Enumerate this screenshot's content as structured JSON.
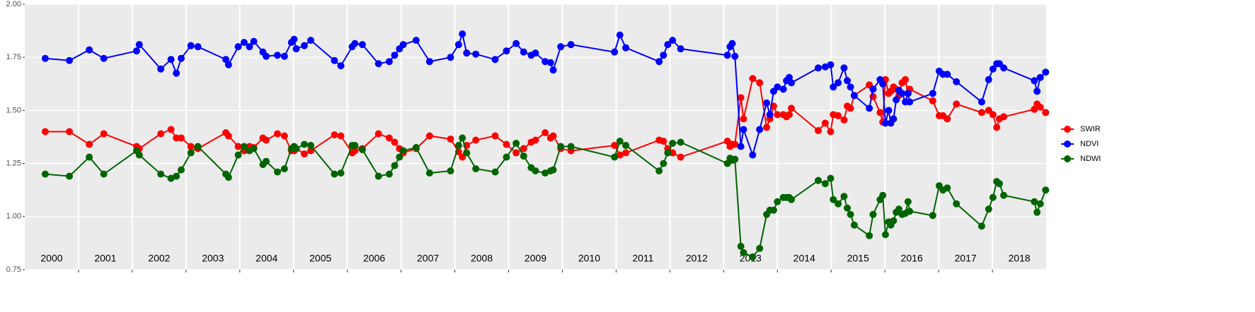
{
  "chart_data": {
    "type": "line",
    "x": [
      2000.38,
      2000.83,
      2001.2,
      2001.47,
      2002.08,
      2002.13,
      2002.53,
      2002.72,
      2002.82,
      2002.91,
      2003.09,
      2003.22,
      2003.74,
      2003.79,
      2003.97,
      2004.08,
      2004.18,
      2004.26,
      2004.43,
      2004.49,
      2004.7,
      2004.83,
      2004.96,
      2005.01,
      2005.05,
      2005.2,
      2005.32,
      2005.76,
      2005.88,
      2006.09,
      2006.14,
      2006.28,
      2006.58,
      2006.78,
      2006.88,
      2006.97,
      2007.04,
      2007.28,
      2007.53,
      2007.92,
      2008.07,
      2008.14,
      2008.22,
      2008.39,
      2008.75,
      2008.96,
      2009.14,
      2009.28,
      2009.42,
      2009.5,
      2009.68,
      2009.78,
      2009.83,
      2009.97,
      2010.16,
      2010.97,
      2011.07,
      2011.18,
      2011.8,
      2011.88,
      2011.96,
      2012.05,
      2012.2,
      2013.07,
      2013.12,
      2013.16,
      2013.21,
      2013.32,
      2013.37,
      2013.54,
      2013.67,
      2013.8,
      2013.86,
      2013.93,
      2014.0,
      2014.11,
      2014.17,
      2014.22,
      2014.26,
      2014.76,
      2014.89,
      2014.99,
      2015.04,
      2015.13,
      2015.24,
      2015.3,
      2015.36,
      2015.43,
      2015.71,
      2015.78,
      2015.91,
      2015.96,
      2016.01,
      2016.07,
      2016.11,
      2016.16,
      2016.21,
      2016.26,
      2016.32,
      2016.38,
      2016.43,
      2016.46,
      2016.89,
      2017.01,
      2017.08,
      2017.16,
      2017.33,
      2017.8,
      2017.93,
      2018.01,
      2018.08,
      2018.13,
      2018.21,
      2018.78,
      2018.83,
      2018.89,
      2018.99
    ],
    "series": [
      {
        "name": "SWIR",
        "color": "#ff0000",
        "values": [
          1.4,
          1.4,
          1.34,
          1.39,
          1.33,
          1.32,
          1.39,
          1.41,
          1.37,
          1.37,
          1.33,
          1.32,
          1.395,
          1.38,
          1.33,
          1.31,
          1.33,
          1.325,
          1.37,
          1.36,
          1.39,
          1.38,
          1.31,
          1.31,
          1.32,
          1.295,
          1.31,
          1.385,
          1.38,
          1.3,
          1.31,
          1.32,
          1.39,
          1.37,
          1.35,
          1.32,
          1.3,
          1.32,
          1.38,
          1.365,
          1.305,
          1.28,
          1.335,
          1.36,
          1.38,
          1.34,
          1.3,
          1.32,
          1.35,
          1.36,
          1.395,
          1.37,
          1.38,
          1.32,
          1.31,
          1.335,
          1.29,
          1.3,
          1.36,
          1.355,
          1.32,
          1.3,
          1.28,
          1.355,
          1.33,
          1.34,
          1.34,
          1.56,
          1.46,
          1.65,
          1.63,
          1.42,
          1.46,
          1.52,
          1.48,
          1.48,
          1.47,
          1.48,
          1.51,
          1.405,
          1.44,
          1.4,
          1.48,
          1.475,
          1.455,
          1.52,
          1.51,
          1.57,
          1.62,
          1.565,
          1.49,
          1.445,
          1.645,
          1.58,
          1.59,
          1.61,
          1.6,
          1.57,
          1.63,
          1.645,
          1.58,
          1.6,
          1.545,
          1.475,
          1.475,
          1.46,
          1.53,
          1.49,
          1.5,
          1.48,
          1.42,
          1.46,
          1.47,
          1.505,
          1.53,
          1.515,
          1.49
        ]
      },
      {
        "name": "NDVI",
        "color": "#0000ff",
        "values": [
          1.745,
          1.735,
          1.785,
          1.745,
          1.78,
          1.81,
          1.695,
          1.74,
          1.675,
          1.745,
          1.805,
          1.8,
          1.74,
          1.715,
          1.8,
          1.82,
          1.8,
          1.825,
          1.775,
          1.755,
          1.76,
          1.755,
          1.82,
          1.835,
          1.79,
          1.805,
          1.83,
          1.735,
          1.71,
          1.8,
          1.815,
          1.81,
          1.72,
          1.73,
          1.76,
          1.79,
          1.81,
          1.83,
          1.73,
          1.75,
          1.81,
          1.86,
          1.77,
          1.765,
          1.74,
          1.78,
          1.815,
          1.775,
          1.76,
          1.77,
          1.73,
          1.725,
          1.69,
          1.8,
          1.81,
          1.775,
          1.855,
          1.795,
          1.73,
          1.76,
          1.81,
          1.83,
          1.79,
          1.76,
          1.8,
          1.815,
          1.755,
          1.33,
          1.41,
          1.29,
          1.41,
          1.535,
          1.48,
          1.59,
          1.61,
          1.6,
          1.64,
          1.655,
          1.63,
          1.7,
          1.705,
          1.715,
          1.61,
          1.63,
          1.7,
          1.64,
          1.61,
          1.57,
          1.51,
          1.6,
          1.645,
          1.625,
          1.44,
          1.5,
          1.44,
          1.46,
          1.55,
          1.595,
          1.58,
          1.54,
          1.58,
          1.54,
          1.58,
          1.685,
          1.67,
          1.67,
          1.635,
          1.54,
          1.645,
          1.695,
          1.72,
          1.72,
          1.7,
          1.64,
          1.59,
          1.655,
          1.68
        ]
      },
      {
        "name": "NDWI",
        "color": "#006400",
        "values": [
          1.2,
          1.19,
          1.28,
          1.2,
          1.31,
          1.29,
          1.2,
          1.18,
          1.19,
          1.22,
          1.3,
          1.33,
          1.2,
          1.185,
          1.29,
          1.33,
          1.31,
          1.32,
          1.245,
          1.26,
          1.21,
          1.225,
          1.32,
          1.33,
          1.32,
          1.34,
          1.335,
          1.2,
          1.205,
          1.335,
          1.335,
          1.315,
          1.19,
          1.2,
          1.24,
          1.28,
          1.31,
          1.325,
          1.205,
          1.215,
          1.335,
          1.37,
          1.3,
          1.225,
          1.21,
          1.28,
          1.345,
          1.285,
          1.23,
          1.215,
          1.205,
          1.215,
          1.22,
          1.33,
          1.33,
          1.28,
          1.355,
          1.335,
          1.215,
          1.25,
          1.3,
          1.345,
          1.35,
          1.25,
          1.275,
          1.265,
          1.27,
          0.86,
          0.83,
          0.81,
          0.85,
          1.01,
          1.03,
          1.03,
          1.07,
          1.09,
          1.09,
          1.09,
          1.08,
          1.17,
          1.155,
          1.18,
          1.08,
          1.06,
          1.095,
          1.04,
          1.01,
          0.96,
          0.91,
          1.01,
          1.08,
          1.1,
          0.915,
          0.975,
          0.96,
          0.98,
          1.02,
          1.035,
          1.01,
          1.015,
          1.07,
          1.025,
          1.005,
          1.145,
          1.125,
          1.135,
          1.06,
          0.955,
          1.035,
          1.09,
          1.165,
          1.155,
          1.1,
          1.07,
          1.02,
          1.06,
          1.125
        ]
      }
    ],
    "year_labels": [
      "2000",
      "2001",
      "2002",
      "2003",
      "2004",
      "2005",
      "2006",
      "2007",
      "2008",
      "2009",
      "2010",
      "2011",
      "2012",
      "2013",
      "2014",
      "2015",
      "2016",
      "2017",
      "2018"
    ],
    "xlim": [
      2000,
      2019
    ],
    "xticks": [
      2001,
      2002,
      2003,
      2004,
      2005,
      2006,
      2007,
      2008,
      2009,
      2010,
      2011,
      2012,
      2013,
      2014,
      2015,
      2016,
      2017,
      2018
    ],
    "ylim": [
      0.75,
      2.0
    ],
    "yticks": [
      {
        "value": 2.0,
        "label": "2.00"
      },
      1.75,
      {
        "value": 1.5,
        "label": "1.50"
      },
      1.25,
      {
        "value": 1.0,
        "label": "1.00"
      },
      0.75
    ],
    "grid": true,
    "legend": "right"
  }
}
